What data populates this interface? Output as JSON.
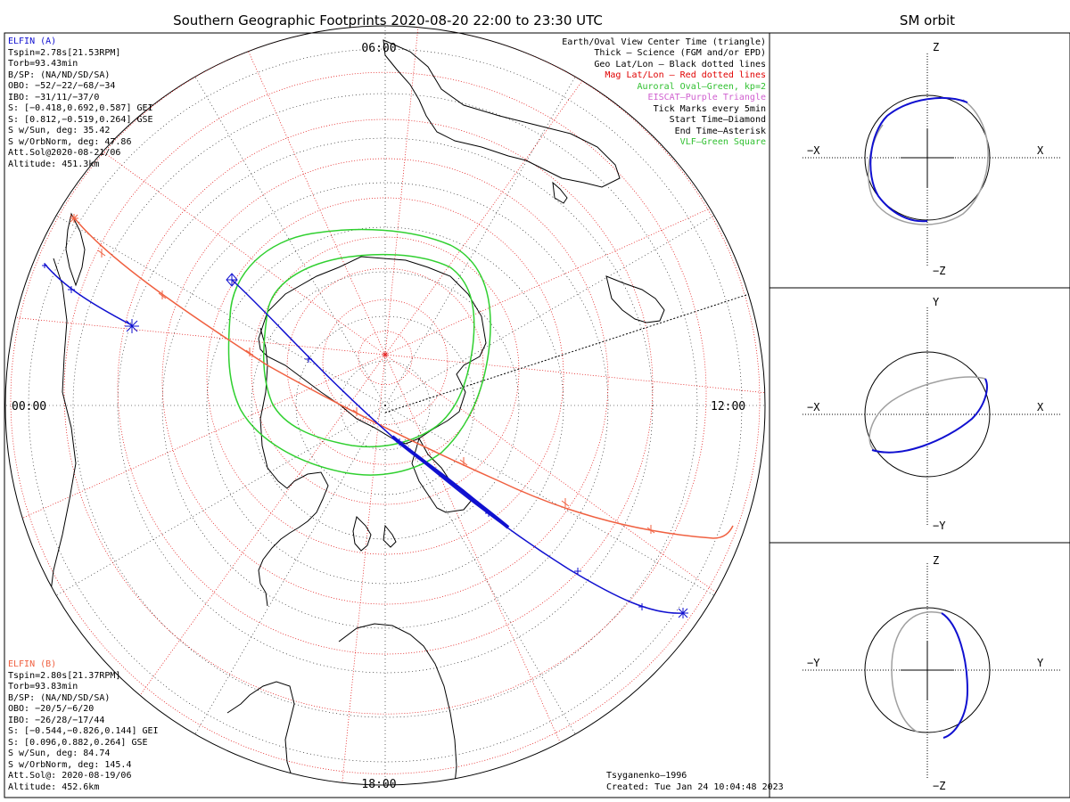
{
  "title": "Southern Geographic Footprints 2020-08-20 22:00 to 23:30 UTC",
  "sm_title": "SM orbit",
  "map": {
    "time_labels": {
      "top": "06:00",
      "left": "00:00",
      "right": "12:00",
      "bottom": "18:00"
    }
  },
  "elfin_a": {
    "name": "ELFIN (A)",
    "color": "#1010d0",
    "lines": [
      "Tspin=2.78s[21.53RPM]",
      "Torb=93.43min",
      "B/SP: (NA/ND/SD/SA)",
      "OBO: −52/−22/−68/−34",
      "IBO: −31/11/−37/0",
      "S: [−0.418,0.692,0.587] GEI",
      "S: [0.812,−0.519,0.264] GSE",
      "S w/Sun, deg: 35.42",
      "S w/OrbNorm, deg: 47.86",
      "Att.Sol@2020-08-21/06",
      "Altitude: 451.3km"
    ]
  },
  "elfin_b": {
    "name": "ELFIN (B)",
    "color": "#f06040",
    "lines": [
      "Tspin=2.80s[21.37RPM]",
      "Torb=93.83min",
      "B/SP: (NA/ND/SD/SA)",
      "OBO: −20/5/−6/20",
      "IBO: −26/28/−17/44",
      "S: [−0.544,−0.826,0.144] GEI",
      "S: [0.096,0.882,0.264] GSE",
      "S w/Sun, deg: 84.74",
      "S w/OrbNorm, deg: 145.4",
      "Att.Sol@: 2020-08-19/06",
      "Altitude: 452.6km"
    ]
  },
  "legend": [
    {
      "text": "Earth/Oval View Center Time (triangle)",
      "color": "#000000"
    },
    {
      "text": "Thick – Science (FGM and/or EPD)",
      "color": "#000000"
    },
    {
      "text": "Geo Lat/Lon – Black dotted lines",
      "color": "#000000"
    },
    {
      "text": "Mag Lat/Lon – Red dotted lines",
      "color": "#e00000"
    },
    {
      "text": "Auroral Oval–Green, kp=2",
      "color": "#30c030"
    },
    {
      "text": "EISCAT–Purple Triangle",
      "color": "#d060d0"
    },
    {
      "text": "Tick Marks every 5min",
      "color": "#000000"
    },
    {
      "text": "Start Time–Diamond",
      "color": "#000000"
    },
    {
      "text": "End Time–Asterisk",
      "color": "#000000"
    },
    {
      "text": "VLF–Green Square",
      "color": "#30c030"
    }
  ],
  "footer": {
    "model": "Tsyganenko–1996",
    "created": "Created: Tue Jan 24 10:04:48 2023"
  },
  "sm_panels": [
    {
      "top": "Z",
      "bottom": "−Z",
      "left": "−X",
      "right": "X"
    },
    {
      "top": "Y",
      "bottom": "−Y",
      "left": "−X",
      "right": "X"
    },
    {
      "top": "Z",
      "bottom": "−Z",
      "left": "−Y",
      "right": "Y"
    }
  ]
}
